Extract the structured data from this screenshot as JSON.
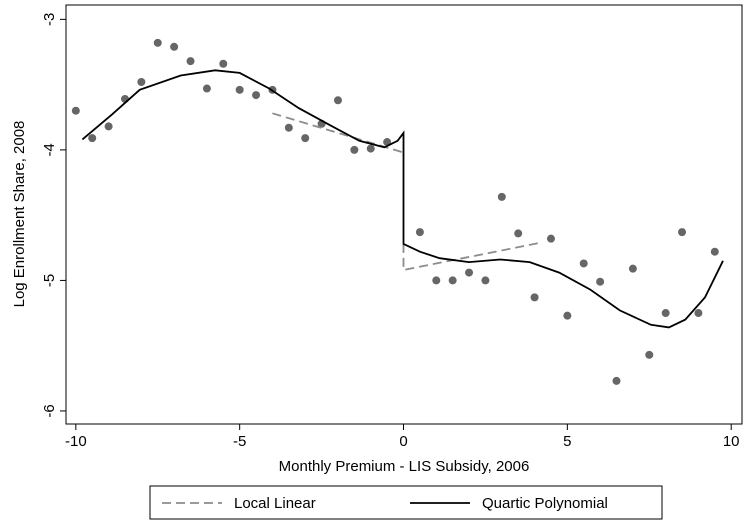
{
  "chart_data": {
    "type": "scatter",
    "xlabel": "Monthly Premium - LIS Subsidy, 2006",
    "ylabel": "Log Enrollment Share, 2008",
    "xlim": [
      -10.3,
      10.33
    ],
    "ylim": [
      -6.1,
      -2.89
    ],
    "xticks": [
      -10,
      -5,
      0,
      5,
      10
    ],
    "yticks": [
      -6,
      -5,
      -4,
      -3
    ],
    "legend": "bottom",
    "series": [
      {
        "type": "scatter",
        "color": "#666666",
        "x": [
          -10,
          -9.5,
          -9,
          -8.5,
          -8,
          -7.5,
          -7,
          -6.5,
          -6,
          -5.5,
          -5,
          -4.5,
          -4,
          -3.5,
          -3,
          -2.5,
          -2,
          -1.5,
          -1,
          -0.5,
          0.5,
          1,
          1.5,
          2,
          2.5,
          3,
          3.5,
          4,
          4.5,
          5,
          5.5,
          6,
          6.5,
          7,
          7.5,
          8,
          8.5,
          9,
          9.5
        ],
        "values": [
          -3.7,
          -3.91,
          -3.82,
          -3.61,
          -3.48,
          -3.18,
          -3.21,
          -3.32,
          -3.53,
          -3.34,
          -3.54,
          -3.58,
          -3.54,
          -3.83,
          -3.91,
          -3.8,
          -3.62,
          -4.0,
          -3.99,
          -3.94,
          -4.63,
          -5.0,
          -5.0,
          -4.94,
          -5.0,
          -4.36,
          -4.64,
          -5.13,
          -4.68,
          -5.27,
          -4.87,
          -5.01,
          -5.77,
          -4.91,
          -5.57,
          -5.25,
          -4.63,
          -5.25,
          -4.78
        ]
      },
      {
        "type": "line",
        "name": "Local Linear",
        "color": "#8c8c8c",
        "linestyle": "dashed",
        "x": [
          -4,
          0,
          null,
          0,
          0,
          4.2
        ],
        "values": [
          -3.72,
          -4.02,
          null,
          -4.72,
          -4.92,
          -4.71
        ]
      },
      {
        "type": "line",
        "name": "Quartic Polynomial",
        "color": "#000000",
        "linestyle": "solid",
        "x": [
          -9.8,
          -8.9,
          -8.05,
          -6.8,
          -5.75,
          -5,
          -4.1,
          -3.2,
          -2.25,
          -1.35,
          -0.58,
          -0.18,
          0,
          0,
          0.5,
          1.1,
          2,
          2.95,
          3.85,
          4.75,
          5.7,
          6.6,
          7.55,
          8.1,
          8.6,
          9.2,
          9.75
        ],
        "values": [
          -3.92,
          -3.73,
          -3.54,
          -3.43,
          -3.39,
          -3.41,
          -3.53,
          -3.68,
          -3.81,
          -3.93,
          -3.98,
          -3.93,
          -3.87,
          -4.72,
          -4.78,
          -4.83,
          -4.86,
          -4.84,
          -4.86,
          -4.94,
          -5.07,
          -5.23,
          -5.34,
          -5.36,
          -5.3,
          -5.13,
          -4.85
        ]
      }
    ]
  }
}
